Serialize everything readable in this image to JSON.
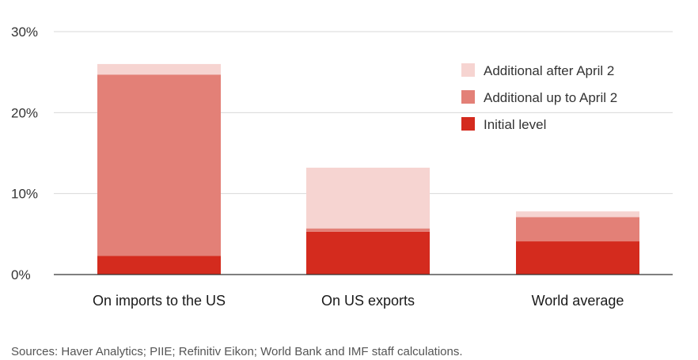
{
  "chart_data": {
    "type": "bar",
    "stacked": true,
    "categories": [
      "On imports to the US",
      "On US exports",
      "World average"
    ],
    "series": [
      {
        "name": "Initial level",
        "values": [
          2.3,
          5.3,
          4.1
        ],
        "color": "#d42b1e"
      },
      {
        "name": "Additional up to April 2",
        "values": [
          22.4,
          0.4,
          3.0
        ],
        "color": "#e38077"
      },
      {
        "name": "Additional after April 2",
        "values": [
          1.3,
          7.5,
          0.7
        ],
        "color": "#f6d4d1"
      }
    ],
    "legend_order": [
      2,
      1,
      0
    ],
    "yticks": [
      0,
      10,
      20,
      30
    ],
    "ytick_labels": [
      "0%",
      "10%",
      "20%",
      "30%"
    ],
    "ylim": [
      0,
      30
    ],
    "grid": true,
    "legend_position": "top-right",
    "xlabel": "",
    "ylabel": ""
  },
  "source_text": "Sources: Haver Analytics; PIIE; Refinitiv Eikon; World Bank and IMF staff calculations."
}
